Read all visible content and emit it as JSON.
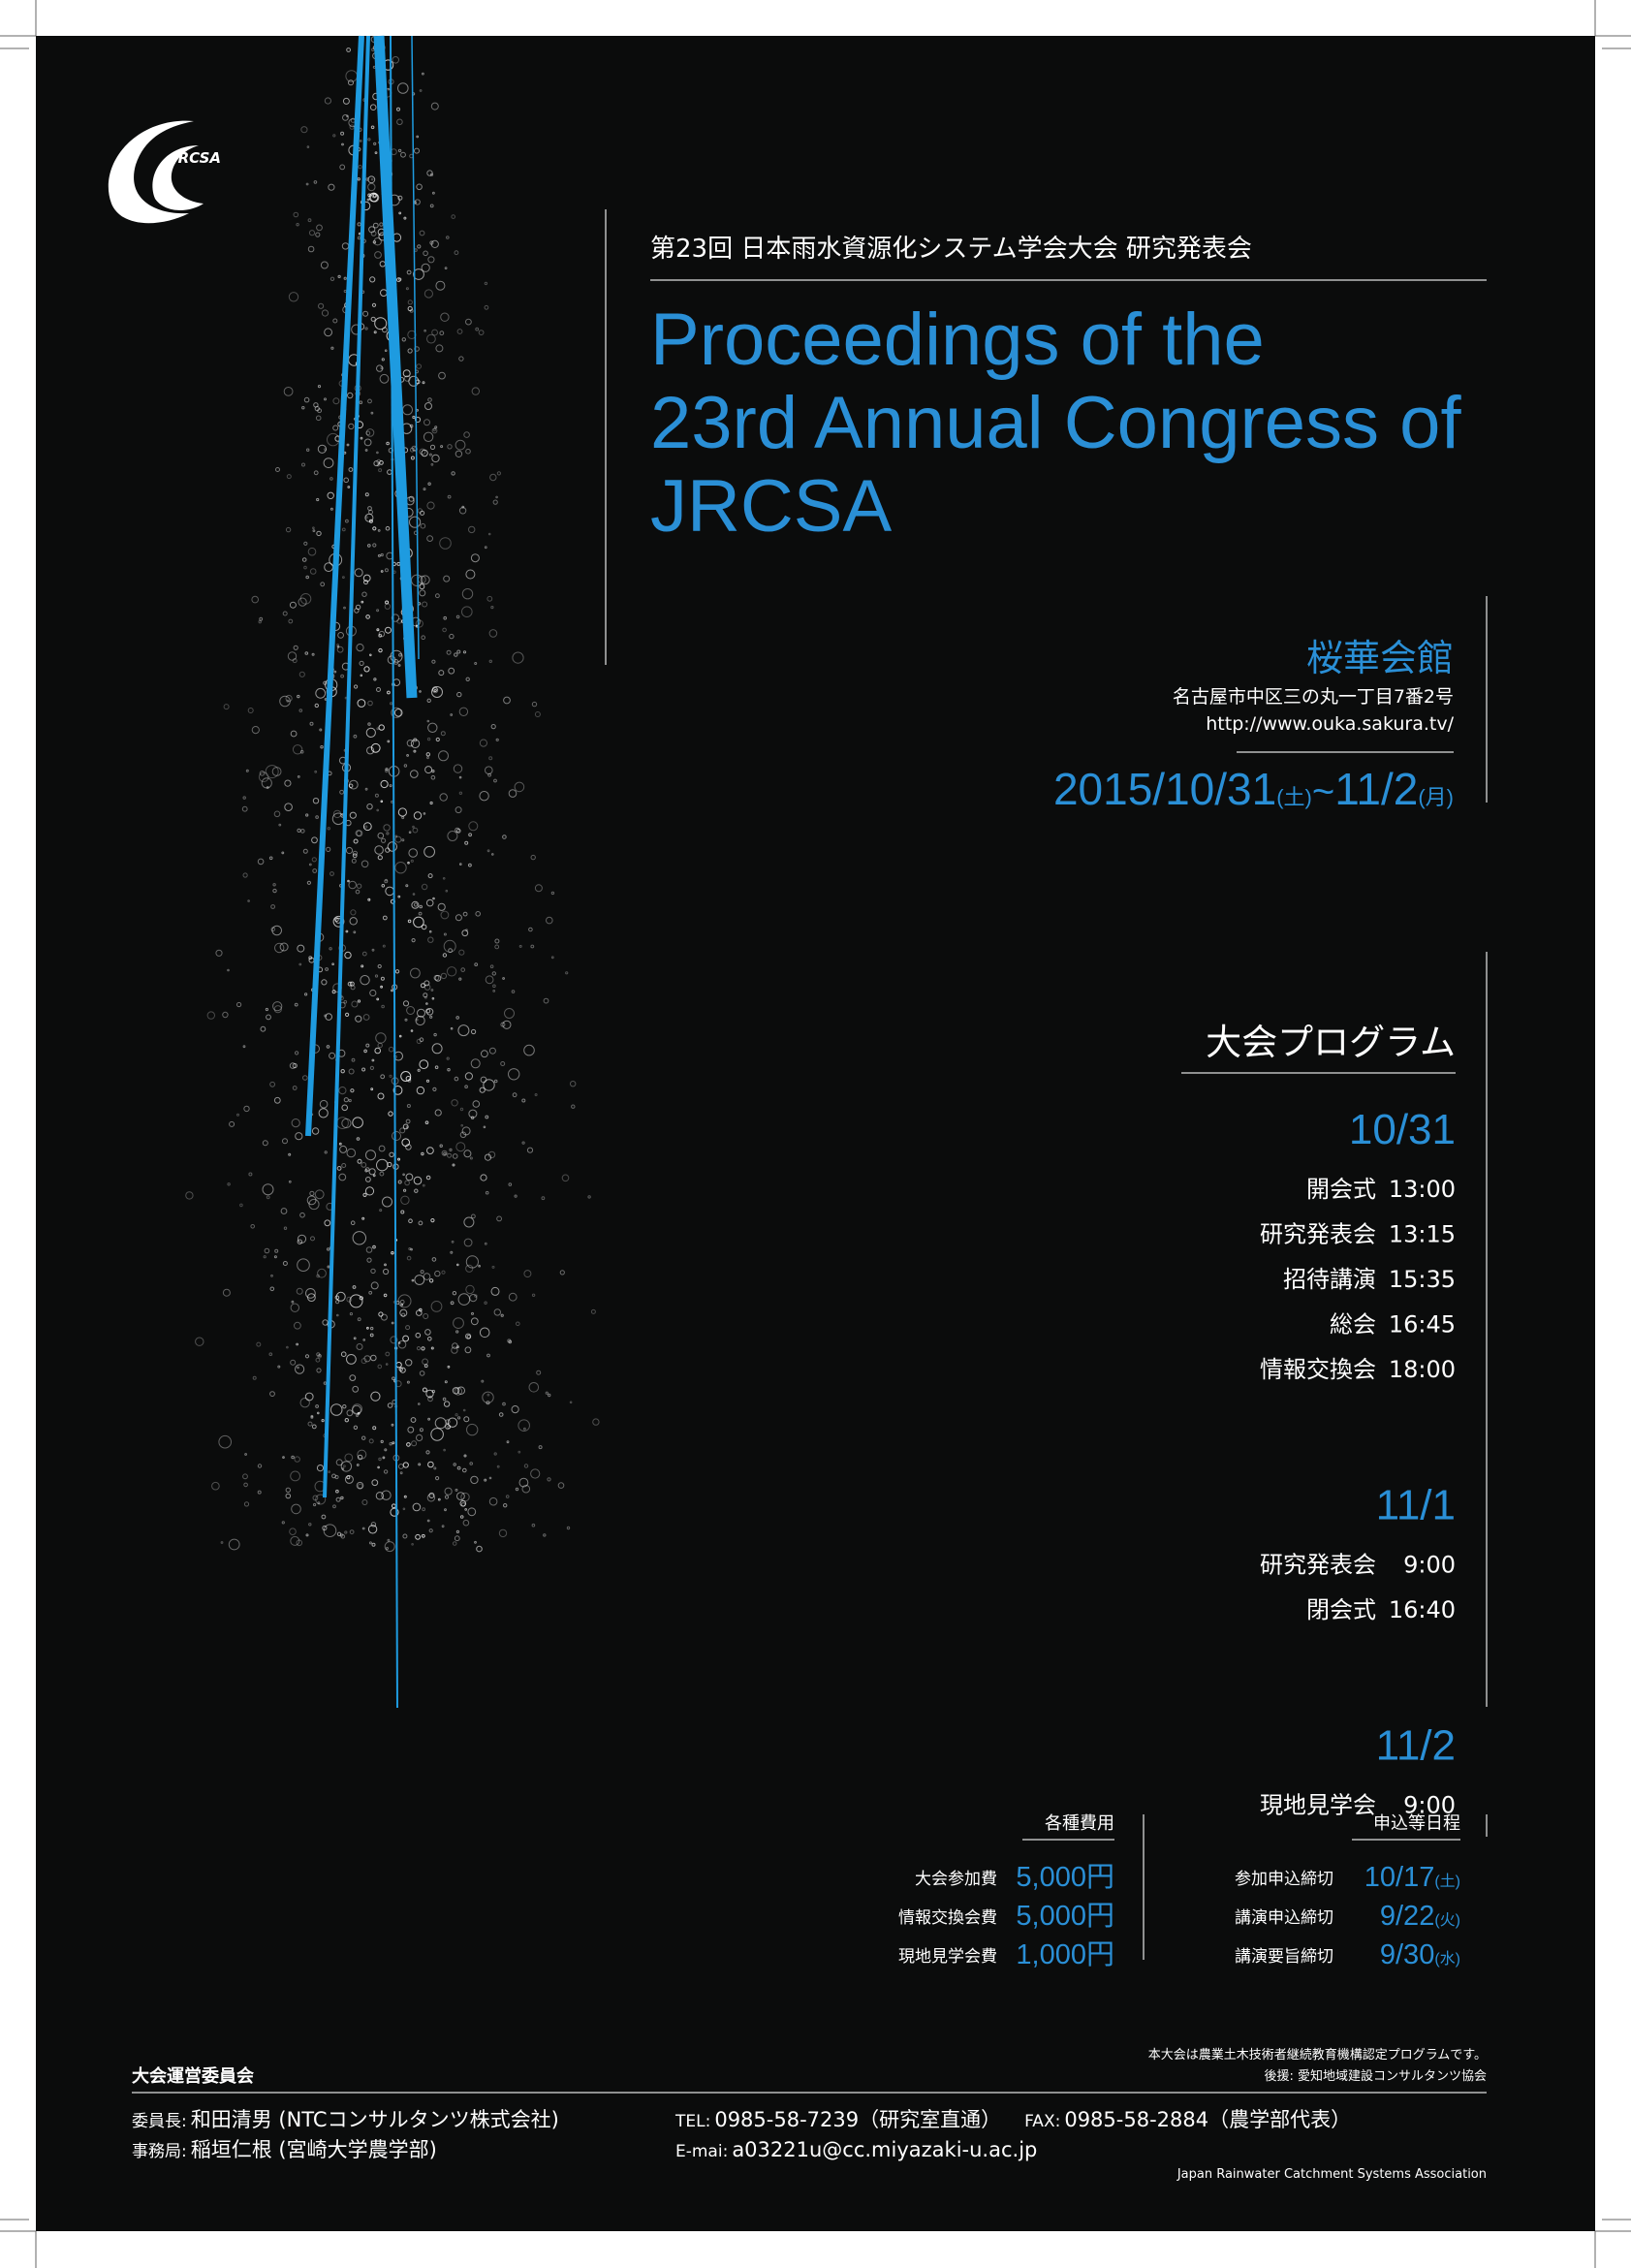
{
  "logo": "JRCSA",
  "header": {
    "subtitle": "第23回 日本雨水資源化システム学会大会 研究発表会",
    "title_lines": [
      "Proceedings of the",
      "23rd Annual Congress of",
      "JRCSA"
    ]
  },
  "venue": {
    "name": "桜華会館",
    "address": "名古屋市中区三の丸一丁目7番2号",
    "url": "http://www.ouka.sakura.tv/",
    "date": {
      "start": "2015/10/31",
      "start_day": "(土)",
      "sep": "~",
      "end": "11/2",
      "end_day": "(月)"
    }
  },
  "program": {
    "title": "大会プログラム",
    "days": [
      {
        "date": "10/31",
        "items": [
          [
            "開会式",
            "13:00"
          ],
          [
            "研究発表会",
            "13:15"
          ],
          [
            "招待講演",
            "15:35"
          ],
          [
            "総会",
            "16:45"
          ],
          [
            "情報交換会",
            "18:00"
          ]
        ]
      },
      {
        "date": "11/1",
        "items": [
          [
            "研究発表会",
            "9:00"
          ],
          [
            "閉会式",
            "16:40"
          ]
        ]
      },
      {
        "date": "11/2",
        "items": [
          [
            "現地見学会",
            "9:00"
          ]
        ]
      }
    ]
  },
  "fees": {
    "title": "各種費用",
    "rows": [
      [
        "大会参加費",
        "5,000円"
      ],
      [
        "情報交換会費",
        "5,000円"
      ],
      [
        "現地見学会費",
        "1,000円"
      ]
    ]
  },
  "deadlines": {
    "title": "申込等日程",
    "rows": [
      [
        "参加申込締切",
        "10/17",
        "(土)"
      ],
      [
        "講演申込締切",
        "9/22",
        "(火)"
      ],
      [
        "講演要旨締切",
        "9/30",
        "(水)"
      ]
    ]
  },
  "notes": [
    "本大会は農業土木技術者継続教育機構認定プログラムです。",
    "後援: 愛知地域建設コンサルタンツ協会"
  ],
  "committee": {
    "title": "大会運営委員会",
    "chair_label": "委員長:",
    "chair": "和田清男 (NTCコンサルタンツ株式会社)",
    "office_label": "事務局:",
    "office": "稲垣仁根 (宮崎大学農学部)",
    "tel_label": "TEL:",
    "tel": "0985-58-7239（研究室直通）",
    "fax_label": "FAX:",
    "fax": "0985-58-2884（農学部代表）",
    "email_label": "E-mai:",
    "email": "a03221u@cc.miyazaki-u.ac.jp"
  },
  "footer": "Japan Rainwater Catchment Systems Association"
}
